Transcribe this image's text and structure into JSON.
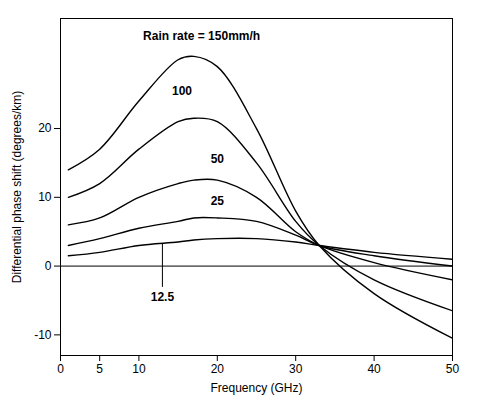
{
  "chart_data": {
    "type": "line",
    "x_label": "Frequency (GHz)",
    "y_label": "Differential phase shift (degrees/km)",
    "x": [
      1,
      5,
      10,
      15,
      17,
      20,
      25,
      30,
      33,
      40,
      50
    ],
    "series": [
      {
        "name": "Rain rate = 150mm/h",
        "color": "#000000",
        "label_x": 18,
        "label_y": 33.5,
        "values": [
          14,
          17,
          24,
          30,
          30.5,
          29,
          20,
          8,
          3,
          -4,
          -10.5
        ]
      },
      {
        "name": "100",
        "color": "#000000",
        "label_x": 15.5,
        "label_y": 25.5,
        "values": [
          10,
          12,
          17,
          21,
          21.5,
          21,
          15,
          6.5,
          3,
          -2,
          -6.5
        ]
      },
      {
        "name": "50",
        "color": "#000000",
        "label_x": 20,
        "label_y": 15.5,
        "values": [
          6,
          7,
          10,
          12,
          12.5,
          12.5,
          10,
          5,
          3,
          0.5,
          -2
        ]
      },
      {
        "name": "25",
        "color": "#000000",
        "label_x": 20,
        "label_y": 9.5,
        "values": [
          3,
          4,
          5.5,
          6.5,
          7,
          7,
          6.5,
          4.5,
          3,
          1.5,
          0
        ]
      },
      {
        "name": "12.5",
        "color": "#000000",
        "label_x": 13,
        "label_y": -4.5,
        "values": [
          1.5,
          2,
          3,
          3.5,
          3.8,
          4,
          4,
          3.5,
          3,
          2,
          1
        ]
      }
    ],
    "xlim": [
      0,
      50
    ],
    "xticks": [
      0,
      5,
      10,
      20,
      30,
      40,
      50
    ],
    "ylim": [
      -13,
      36
    ],
    "yticks": [
      -10,
      0,
      10,
      20
    ],
    "grid": false
  }
}
